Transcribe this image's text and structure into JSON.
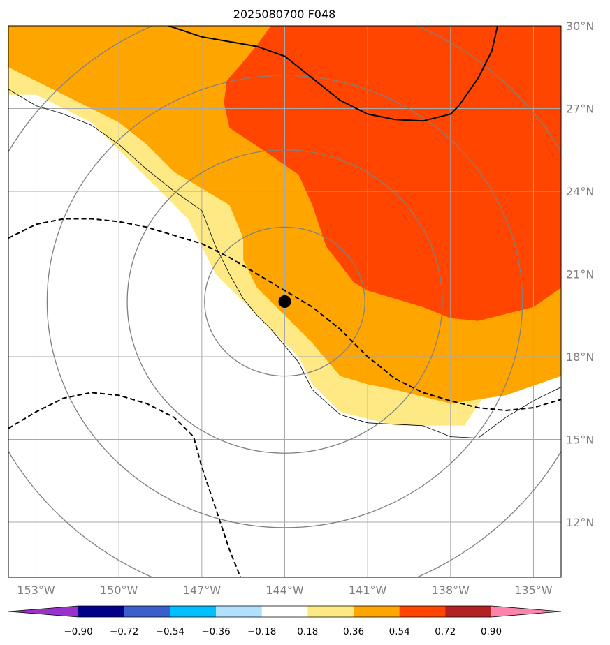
{
  "chart_data": {
    "type": "contour-map",
    "title": "2025080700 F048",
    "xlim": [
      -154,
      -134
    ],
    "ylim": [
      10,
      30
    ],
    "x_ticks": [
      {
        "value": -153,
        "label": "153°W"
      },
      {
        "value": -150,
        "label": "150°W"
      },
      {
        "value": -147,
        "label": "147°W"
      },
      {
        "value": -144,
        "label": "144°W"
      },
      {
        "value": -141,
        "label": "141°W"
      },
      {
        "value": -138,
        "label": "138°W"
      },
      {
        "value": -135,
        "label": "135°W"
      }
    ],
    "y_ticks": [
      {
        "value": 12,
        "label": "12°N"
      },
      {
        "value": 15,
        "label": "15°N"
      },
      {
        "value": 18,
        "label": "18°N"
      },
      {
        "value": 21,
        "label": "21°N"
      },
      {
        "value": 24,
        "label": "24°N"
      },
      {
        "value": 27,
        "label": "27°N"
      },
      {
        "value": 30,
        "label": "30°N"
      }
    ],
    "grid": true,
    "center": {
      "lon": -144,
      "lat": 20
    },
    "range_rings": [
      {
        "lat_radius": 2.7,
        "lon_radius": 2.9
      },
      {
        "lat_radius": 5.5,
        "lon_radius": 5.7
      },
      {
        "lat_radius": 8.2,
        "lon_radius": 8.6
      },
      {
        "lat_radius": 11.0,
        "lon_radius": 11.5
      }
    ],
    "colorbar": {
      "levels": [
        -0.9,
        -0.72,
        -0.54,
        -0.36,
        -0.18,
        0.18,
        0.36,
        0.54,
        0.72,
        0.9
      ],
      "level_labels": [
        "−0.90",
        "−0.72",
        "−0.54",
        "−0.36",
        "−0.18",
        "0.18",
        "0.36",
        "0.54",
        "0.72",
        "0.90"
      ],
      "colors": [
        "#9932cc",
        "#00008b",
        "#3a5fcd",
        "#00bfff",
        "#b0e2ff",
        "#ffffff",
        "#ffe985",
        "#ffa500",
        "#ff4500",
        "#b22222",
        "#ff82ab"
      ],
      "extend": "both"
    },
    "filled_regions": [
      {
        "level": "0.18–0.36",
        "color": "#ffe985",
        "points": [
          [
            -154,
            30
          ],
          [
            -134,
            30
          ],
          [
            -134,
            18.3
          ],
          [
            -135,
            18
          ],
          [
            -136.5,
            17
          ],
          [
            -137.5,
            15.5
          ],
          [
            -140,
            15.5
          ],
          [
            -142,
            16
          ],
          [
            -143,
            17
          ],
          [
            -143.5,
            18
          ],
          [
            -144.5,
            19
          ],
          [
            -145.5,
            20
          ],
          [
            -146.5,
            21
          ],
          [
            -147,
            22
          ],
          [
            -147.5,
            23
          ],
          [
            -149,
            24.5
          ],
          [
            -150,
            25.5
          ],
          [
            -151,
            26.5
          ],
          [
            -152,
            27
          ],
          [
            -153,
            27.5
          ],
          [
            -154,
            27.5
          ]
        ]
      },
      {
        "level": "0.36–0.54",
        "color": "#ffa500",
        "points": [
          [
            -154,
            30
          ],
          [
            -134,
            30
          ],
          [
            -134,
            17.3
          ],
          [
            -136,
            16.6
          ],
          [
            -138,
            16.3
          ],
          [
            -140,
            16.8
          ],
          [
            -141,
            17
          ],
          [
            -142,
            17.3
          ],
          [
            -143,
            18.5
          ],
          [
            -144,
            19.5
          ],
          [
            -145,
            20.5
          ],
          [
            -145.5,
            21.5
          ],
          [
            -145.5,
            22.3
          ],
          [
            -146,
            23.5
          ],
          [
            -147,
            24.1
          ],
          [
            -148,
            24.7
          ],
          [
            -149,
            25.7
          ],
          [
            -150,
            26.5
          ],
          [
            -152,
            27.5
          ],
          [
            -153,
            28
          ],
          [
            -154,
            28.5
          ]
        ]
      },
      {
        "level": "0.54–0.72",
        "color": "#ff4500",
        "points": [
          [
            -144.5,
            30
          ],
          [
            -134,
            30
          ],
          [
            -134,
            20.5
          ],
          [
            -135,
            19.8
          ],
          [
            -137,
            19.3
          ],
          [
            -138,
            19.4
          ],
          [
            -139,
            19.8
          ],
          [
            -140,
            20.1
          ],
          [
            -141,
            20.4
          ],
          [
            -141.5,
            20.7
          ],
          [
            -142.5,
            22
          ],
          [
            -143,
            23.5
          ],
          [
            -143.5,
            24.6
          ],
          [
            -144.5,
            25.3
          ],
          [
            -146,
            26.3
          ],
          [
            -146.2,
            27.2
          ],
          [
            -146.1,
            28
          ],
          [
            -145.5,
            28.7
          ],
          [
            -145,
            29.3
          ]
        ]
      }
    ],
    "solid_contour": [
      [
        -148.2,
        30
      ],
      [
        -147,
        29.6
      ],
      [
        -145,
        29.25
      ],
      [
        -144,
        28.9
      ],
      [
        -143,
        28.1
      ],
      [
        -142,
        27.3
      ],
      [
        -141,
        26.8
      ],
      [
        -140,
        26.6
      ],
      [
        -139,
        26.55
      ],
      [
        -138,
        26.8
      ],
      [
        -137.7,
        27.1
      ],
      [
        -137,
        28.1
      ],
      [
        -136.5,
        29.1
      ],
      [
        -136.3,
        30
      ]
    ],
    "dashed_contours": [
      [
        [
          -154,
          22.3
        ],
        [
          -153,
          22.8
        ],
        [
          -152,
          23
        ],
        [
          -151,
          23
        ],
        [
          -150,
          22.9
        ],
        [
          -149,
          22.7
        ],
        [
          -148,
          22.4
        ],
        [
          -147,
          22.1
        ],
        [
          -146,
          21.6
        ],
        [
          -145,
          21
        ],
        [
          -144,
          20.4
        ],
        [
          -143,
          19.8
        ],
        [
          -142,
          19
        ],
        [
          -141,
          18
        ],
        [
          -140,
          17.2
        ],
        [
          -139,
          16.7
        ],
        [
          -138,
          16.4
        ],
        [
          -137,
          16.15
        ],
        [
          -136,
          16.05
        ],
        [
          -135,
          16.15
        ],
        [
          -134,
          16.45
        ]
      ],
      [
        [
          -154,
          15.4
        ],
        [
          -153,
          16
        ],
        [
          -152,
          16.5
        ],
        [
          -151,
          16.7
        ],
        [
          -150,
          16.6
        ],
        [
          -149,
          16.3
        ],
        [
          -148,
          15.8
        ],
        [
          -147.3,
          15.1
        ],
        [
          -147,
          14
        ],
        [
          -146.5,
          12.5
        ],
        [
          -146,
          11
        ],
        [
          -145.6,
          10
        ]
      ]
    ],
    "coastline_line": [
      [
        -154,
        27.7
      ],
      [
        -153,
        27.1
      ],
      [
        -152,
        26.8
      ],
      [
        -151,
        26.4
      ],
      [
        -150,
        25.7
      ],
      [
        -149,
        24.8
      ],
      [
        -148,
        24
      ],
      [
        -147,
        23.3
      ],
      [
        -146.5,
        22
      ],
      [
        -146,
        21
      ],
      [
        -145.5,
        20.1
      ],
      [
        -145,
        19.5
      ],
      [
        -144.5,
        19
      ],
      [
        -144,
        18.4
      ],
      [
        -143.5,
        17.8
      ],
      [
        -143,
        16.8
      ],
      [
        -142,
        15.9
      ],
      [
        -141,
        15.6
      ],
      [
        -140,
        15.55
      ],
      [
        -139,
        15.5
      ],
      [
        -138,
        15.1
      ],
      [
        -137,
        15.05
      ],
      [
        -136,
        15.8
      ],
      [
        -135,
        16.4
      ],
      [
        -134,
        16.9
      ]
    ]
  }
}
